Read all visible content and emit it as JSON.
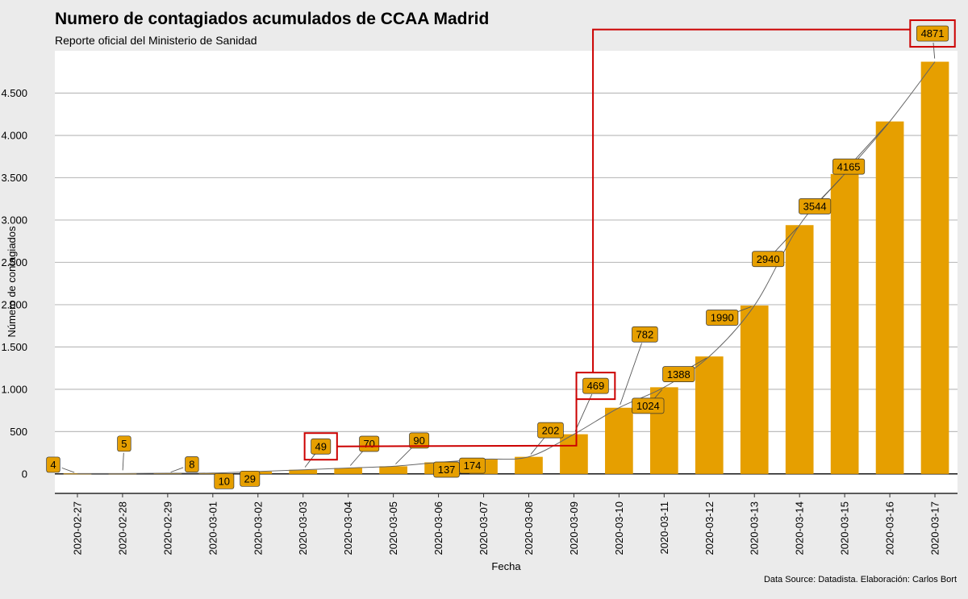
{
  "header": {
    "title": "Numero de contagiados acumulados de CCAA Madrid",
    "subtitle": "Reporte oficial del Ministerio de Sanidad"
  },
  "footer": {
    "caption": "Data Source: Datadista. Elaboración: Carlos Bort"
  },
  "chart_data": {
    "type": "bar",
    "title": "Numero de contagiados acumulados de CCAA Madrid",
    "subtitle": "Reporte oficial del Ministerio de Sanidad",
    "xlabel": "Fecha",
    "ylabel": "Número de contagiados",
    "categories": [
      "2020-02-27",
      "2020-02-28",
      "2020-02-29",
      "2020-03-01",
      "2020-03-02",
      "2020-03-03",
      "2020-03-04",
      "2020-03-05",
      "2020-03-06",
      "2020-03-07",
      "2020-03-08",
      "2020-03-09",
      "2020-03-10",
      "2020-03-11",
      "2020-03-12",
      "2020-03-13",
      "2020-03-14",
      "2020-03-15",
      "2020-03-16",
      "2020-03-17"
    ],
    "values": [
      4,
      5,
      8,
      10,
      29,
      49,
      70,
      90,
      137,
      174,
      202,
      469,
      782,
      1024,
      1388,
      1990,
      2940,
      3544,
      4165,
      4871
    ],
    "data_labels": [
      "4",
      "5",
      "8",
      "10",
      "29",
      "49",
      "70",
      "90",
      "137",
      "174",
      "202",
      "469",
      "782",
      "1024",
      "1388",
      "1990",
      "2940",
      "3544",
      "4165",
      "4871"
    ],
    "ylim": [
      -230,
      5000
    ],
    "yticks": [
      0,
      500,
      1000,
      1500,
      2000,
      2500,
      3000,
      3500,
      4000,
      4500
    ],
    "ytick_labels": [
      "0",
      "500",
      "1.000",
      "1.500",
      "2.000",
      "2.500",
      "3.000",
      "3.500",
      "4.000",
      "4.500"
    ],
    "grid": true,
    "trend_line": true,
    "highlighted_labels": [
      "49",
      "469",
      "4871"
    ],
    "colors": {
      "bar": "#E69F00",
      "label_fill": "#E69F00",
      "highlight": "#CC0000",
      "grid": "#bdbdbd",
      "trend": "#666666",
      "panel": "#ffffff",
      "background": "#ebebeb"
    }
  }
}
